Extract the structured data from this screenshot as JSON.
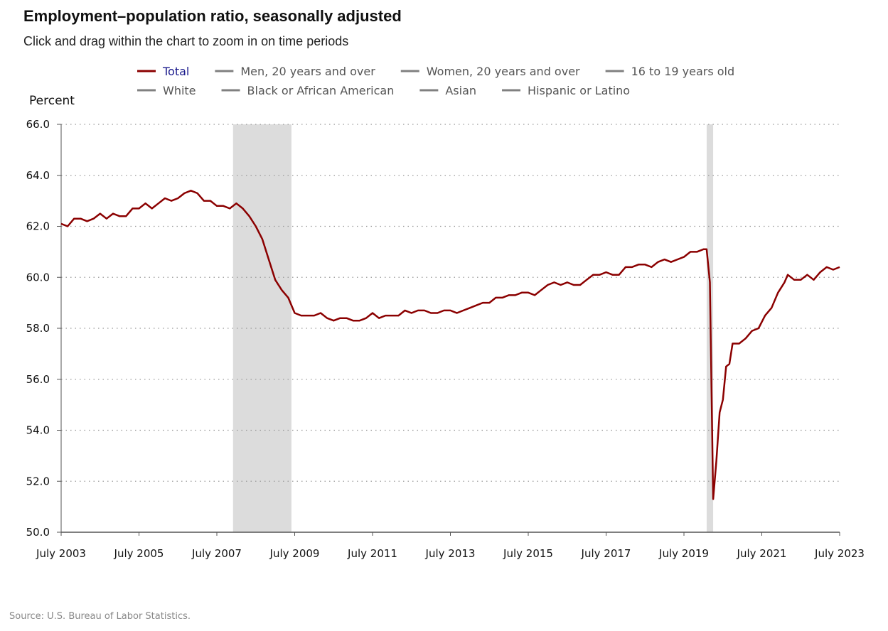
{
  "header": {
    "title": "Employment–population ratio, seasonally adjusted",
    "subtitle": "Click and drag within the chart to zoom in on time periods"
  },
  "footer": {
    "source": "Source: U.S. Bureau of Labor Statistics."
  },
  "colors": {
    "total_series": "#8b0000",
    "inactive_series": "#808080",
    "active_legend_text": "#1a1a8c",
    "inactive_legend_text": "#555555",
    "recession_band": "#dcdcdc",
    "grid": "#999999"
  },
  "legend": {
    "items": [
      {
        "label": "Total",
        "active": true
      },
      {
        "label": "Men, 20 years and over",
        "active": false
      },
      {
        "label": "Women, 20 years and over",
        "active": false
      },
      {
        "label": "16 to 19 years old",
        "active": false
      },
      {
        "label": "White",
        "active": false
      },
      {
        "label": "Black or African American",
        "active": false
      },
      {
        "label": "Asian",
        "active": false
      },
      {
        "label": "Hispanic or Latino",
        "active": false
      }
    ]
  },
  "chart_data": {
    "type": "line",
    "title": "Employment–population ratio, seasonally adjusted",
    "ylabel": "Percent",
    "xlabel": "",
    "ylim": [
      50.0,
      66.0
    ],
    "xlim": [
      "2003-07",
      "2023-07"
    ],
    "y_ticks": [
      "50.0",
      "52.0",
      "54.0",
      "56.0",
      "58.0",
      "60.0",
      "62.0",
      "64.0",
      "66.0"
    ],
    "x_ticks": [
      {
        "label": "July 2003",
        "date": "2003-07"
      },
      {
        "label": "July 2005",
        "date": "2005-07"
      },
      {
        "label": "July 2007",
        "date": "2007-07"
      },
      {
        "label": "July 2009",
        "date": "2009-07"
      },
      {
        "label": "July 2011",
        "date": "2011-07"
      },
      {
        "label": "July 2013",
        "date": "2013-07"
      },
      {
        "label": "July 2015",
        "date": "2015-07"
      },
      {
        "label": "July 2017",
        "date": "2017-07"
      },
      {
        "label": "July 2019",
        "date": "2019-07"
      },
      {
        "label": "July 2021",
        "date": "2021-07"
      },
      {
        "label": "July 2023",
        "date": "2023-07"
      }
    ],
    "grid": "horizontal dotted",
    "recessions": [
      {
        "start": "2007-12",
        "end": "2009-06"
      },
      {
        "start": "2020-02",
        "end": "2020-04"
      }
    ],
    "series": [
      {
        "name": "Total",
        "points": [
          [
            "2003-07",
            62.1
          ],
          [
            "2003-09",
            62.0
          ],
          [
            "2003-11",
            62.3
          ],
          [
            "2004-01",
            62.3
          ],
          [
            "2004-03",
            62.2
          ],
          [
            "2004-05",
            62.3
          ],
          [
            "2004-07",
            62.5
          ],
          [
            "2004-09",
            62.3
          ],
          [
            "2004-11",
            62.5
          ],
          [
            "2005-01",
            62.4
          ],
          [
            "2005-03",
            62.4
          ],
          [
            "2005-05",
            62.7
          ],
          [
            "2005-07",
            62.7
          ],
          [
            "2005-09",
            62.9
          ],
          [
            "2005-11",
            62.7
          ],
          [
            "2006-01",
            62.9
          ],
          [
            "2006-03",
            63.1
          ],
          [
            "2006-05",
            63.0
          ],
          [
            "2006-07",
            63.1
          ],
          [
            "2006-09",
            63.3
          ],
          [
            "2006-11",
            63.4
          ],
          [
            "2007-01",
            63.3
          ],
          [
            "2007-03",
            63.0
          ],
          [
            "2007-05",
            63.0
          ],
          [
            "2007-07",
            62.8
          ],
          [
            "2007-09",
            62.8
          ],
          [
            "2007-11",
            62.7
          ],
          [
            "2008-01",
            62.9
          ],
          [
            "2008-03",
            62.7
          ],
          [
            "2008-05",
            62.4
          ],
          [
            "2008-07",
            62.0
          ],
          [
            "2008-09",
            61.5
          ],
          [
            "2008-11",
            60.7
          ],
          [
            "2009-01",
            59.9
          ],
          [
            "2009-03",
            59.5
          ],
          [
            "2009-05",
            59.2
          ],
          [
            "2009-07",
            58.6
          ],
          [
            "2009-09",
            58.5
          ],
          [
            "2009-11",
            58.5
          ],
          [
            "2010-01",
            58.5
          ],
          [
            "2010-03",
            58.6
          ],
          [
            "2010-05",
            58.4
          ],
          [
            "2010-07",
            58.3
          ],
          [
            "2010-09",
            58.4
          ],
          [
            "2010-11",
            58.4
          ],
          [
            "2011-01",
            58.3
          ],
          [
            "2011-03",
            58.3
          ],
          [
            "2011-05",
            58.4
          ],
          [
            "2011-07",
            58.6
          ],
          [
            "2011-09",
            58.4
          ],
          [
            "2011-11",
            58.5
          ],
          [
            "2012-01",
            58.5
          ],
          [
            "2012-03",
            58.5
          ],
          [
            "2012-05",
            58.7
          ],
          [
            "2012-07",
            58.6
          ],
          [
            "2012-09",
            58.7
          ],
          [
            "2012-11",
            58.7
          ],
          [
            "2013-01",
            58.6
          ],
          [
            "2013-03",
            58.6
          ],
          [
            "2013-05",
            58.7
          ],
          [
            "2013-07",
            58.7
          ],
          [
            "2013-09",
            58.6
          ],
          [
            "2013-11",
            58.7
          ],
          [
            "2014-01",
            58.8
          ],
          [
            "2014-03",
            58.9
          ],
          [
            "2014-05",
            59.0
          ],
          [
            "2014-07",
            59.0
          ],
          [
            "2014-09",
            59.2
          ],
          [
            "2014-11",
            59.2
          ],
          [
            "2015-01",
            59.3
          ],
          [
            "2015-03",
            59.3
          ],
          [
            "2015-05",
            59.4
          ],
          [
            "2015-07",
            59.4
          ],
          [
            "2015-09",
            59.3
          ],
          [
            "2015-11",
            59.5
          ],
          [
            "2016-01",
            59.7
          ],
          [
            "2016-03",
            59.8
          ],
          [
            "2016-05",
            59.7
          ],
          [
            "2016-07",
            59.8
          ],
          [
            "2016-09",
            59.7
          ],
          [
            "2016-11",
            59.7
          ],
          [
            "2017-01",
            59.9
          ],
          [
            "2017-03",
            60.1
          ],
          [
            "2017-05",
            60.1
          ],
          [
            "2017-07",
            60.2
          ],
          [
            "2017-09",
            60.1
          ],
          [
            "2017-11",
            60.1
          ],
          [
            "2018-01",
            60.4
          ],
          [
            "2018-03",
            60.4
          ],
          [
            "2018-05",
            60.5
          ],
          [
            "2018-07",
            60.5
          ],
          [
            "2018-09",
            60.4
          ],
          [
            "2018-11",
            60.6
          ],
          [
            "2019-01",
            60.7
          ],
          [
            "2019-03",
            60.6
          ],
          [
            "2019-05",
            60.7
          ],
          [
            "2019-07",
            60.8
          ],
          [
            "2019-09",
            61.0
          ],
          [
            "2019-11",
            61.0
          ],
          [
            "2020-01",
            61.1
          ],
          [
            "2020-02",
            61.1
          ],
          [
            "2020-03",
            59.8
          ],
          [
            "2020-04",
            51.3
          ],
          [
            "2020-05",
            52.8
          ],
          [
            "2020-06",
            54.7
          ],
          [
            "2020-07",
            55.2
          ],
          [
            "2020-08",
            56.5
          ],
          [
            "2020-09",
            56.6
          ],
          [
            "2020-10",
            57.4
          ],
          [
            "2020-12",
            57.4
          ],
          [
            "2021-02",
            57.6
          ],
          [
            "2021-04",
            57.9
          ],
          [
            "2021-06",
            58.0
          ],
          [
            "2021-08",
            58.5
          ],
          [
            "2021-10",
            58.8
          ],
          [
            "2021-12",
            59.4
          ],
          [
            "2022-02",
            59.8
          ],
          [
            "2022-03",
            60.1
          ],
          [
            "2022-05",
            59.9
          ],
          [
            "2022-07",
            59.9
          ],
          [
            "2022-09",
            60.1
          ],
          [
            "2022-11",
            59.9
          ],
          [
            "2023-01",
            60.2
          ],
          [
            "2023-03",
            60.4
          ],
          [
            "2023-05",
            60.3
          ],
          [
            "2023-07",
            60.4
          ]
        ]
      }
    ]
  }
}
